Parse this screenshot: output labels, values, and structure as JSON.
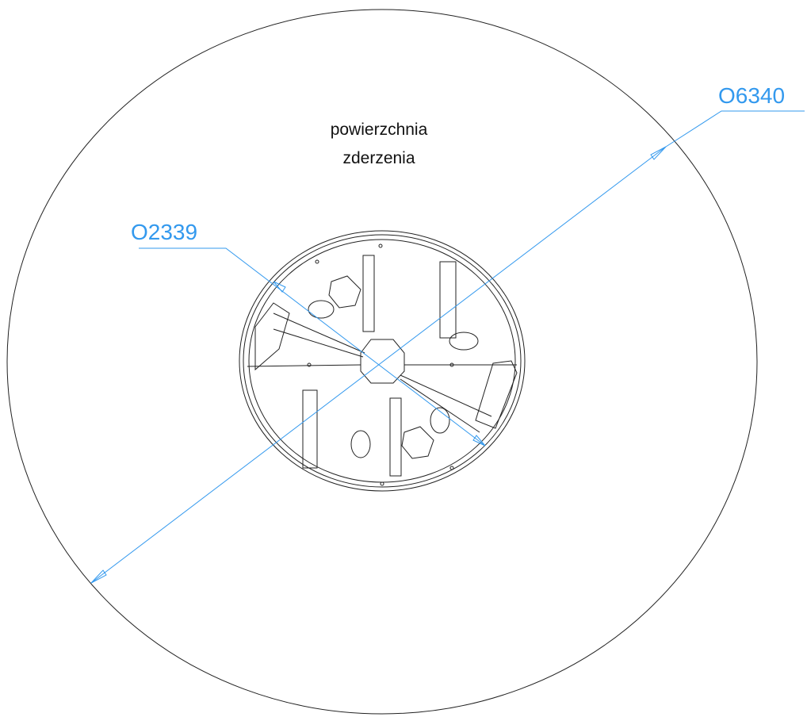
{
  "label": {
    "lines": [
      "powierzchnia",
      "zderzenia"
    ]
  },
  "dimensions": [
    {
      "label": "O6340"
    },
    {
      "label": "O2339"
    }
  ]
}
